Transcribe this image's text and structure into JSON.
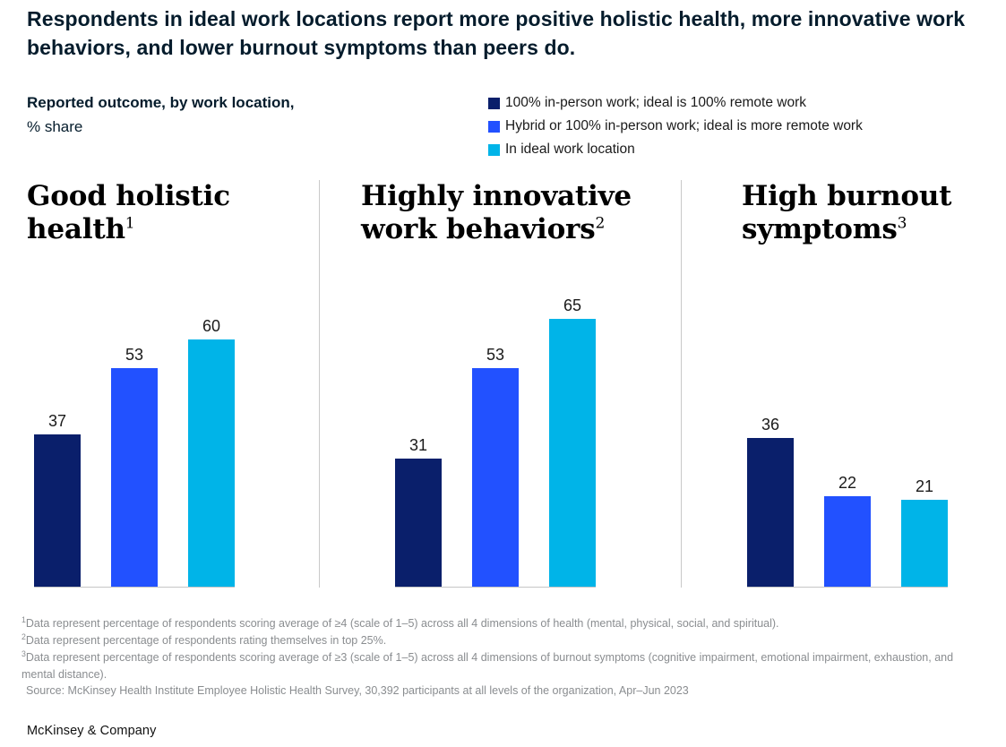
{
  "header": {
    "title": "Respondents in ideal work locations report more positive holistic health, more innovative work behaviors, and lower burnout symptoms than peers do.",
    "subtitle_bold": "Reported outcome, by work location,",
    "subtitle_unit": "% share"
  },
  "legend": {
    "items": [
      {
        "label": "100% in-person work; ideal is 100% remote work",
        "color": "#0a1f6b"
      },
      {
        "label": "Hybrid or 100% in-person work; ideal is more remote work",
        "color": "#2251ff"
      },
      {
        "label": "In ideal work location",
        "color": "#00b4e8"
      }
    ]
  },
  "chart_data": {
    "type": "bar",
    "title": "Reported outcome, by work location, % share",
    "ylabel": "% share",
    "ylim": [
      0,
      70
    ],
    "gridlines": false,
    "value_labels": true,
    "legend_position": "top-right",
    "series_labels": [
      "100% in-person work; ideal is 100% remote work",
      "Hybrid or 100% in-person work; ideal is more remote work",
      "In ideal work location"
    ],
    "colors": [
      "#0a1f6b",
      "#2251ff",
      "#00b4e8"
    ],
    "panels": [
      {
        "title": "Good holistic health",
        "footnote_ref": "1",
        "values": [
          37,
          53,
          60
        ]
      },
      {
        "title": "Highly innovative work behaviors",
        "footnote_ref": "2",
        "values": [
          31,
          53,
          65
        ]
      },
      {
        "title": "High burnout symptoms",
        "footnote_ref": "3",
        "values": [
          36,
          22,
          21
        ]
      }
    ]
  },
  "footnotes": [
    {
      "sup": "1",
      "text": "Data represent percentage of respondents scoring average of ≥4 (scale of 1–5) across all 4 dimensions of health (mental, physical, social, and spiritual)."
    },
    {
      "sup": "2",
      "text": "Data represent percentage of respondents rating themselves in top 25%."
    },
    {
      "sup": "3",
      "text": "Data represent percentage of respondents scoring average of ≥3 (scale of 1–5) across all 4 dimensions of burnout symptoms (cognitive impairment, emotional impairment, exhaustion, and mental distance)."
    },
    {
      "sup": "",
      "text": "Source: McKinsey Health Institute Employee Holistic Health Survey, 30,392 participants at all levels of the organization, Apr–Jun 2023"
    }
  ],
  "footer": {
    "brand": "McKinsey & Company"
  }
}
